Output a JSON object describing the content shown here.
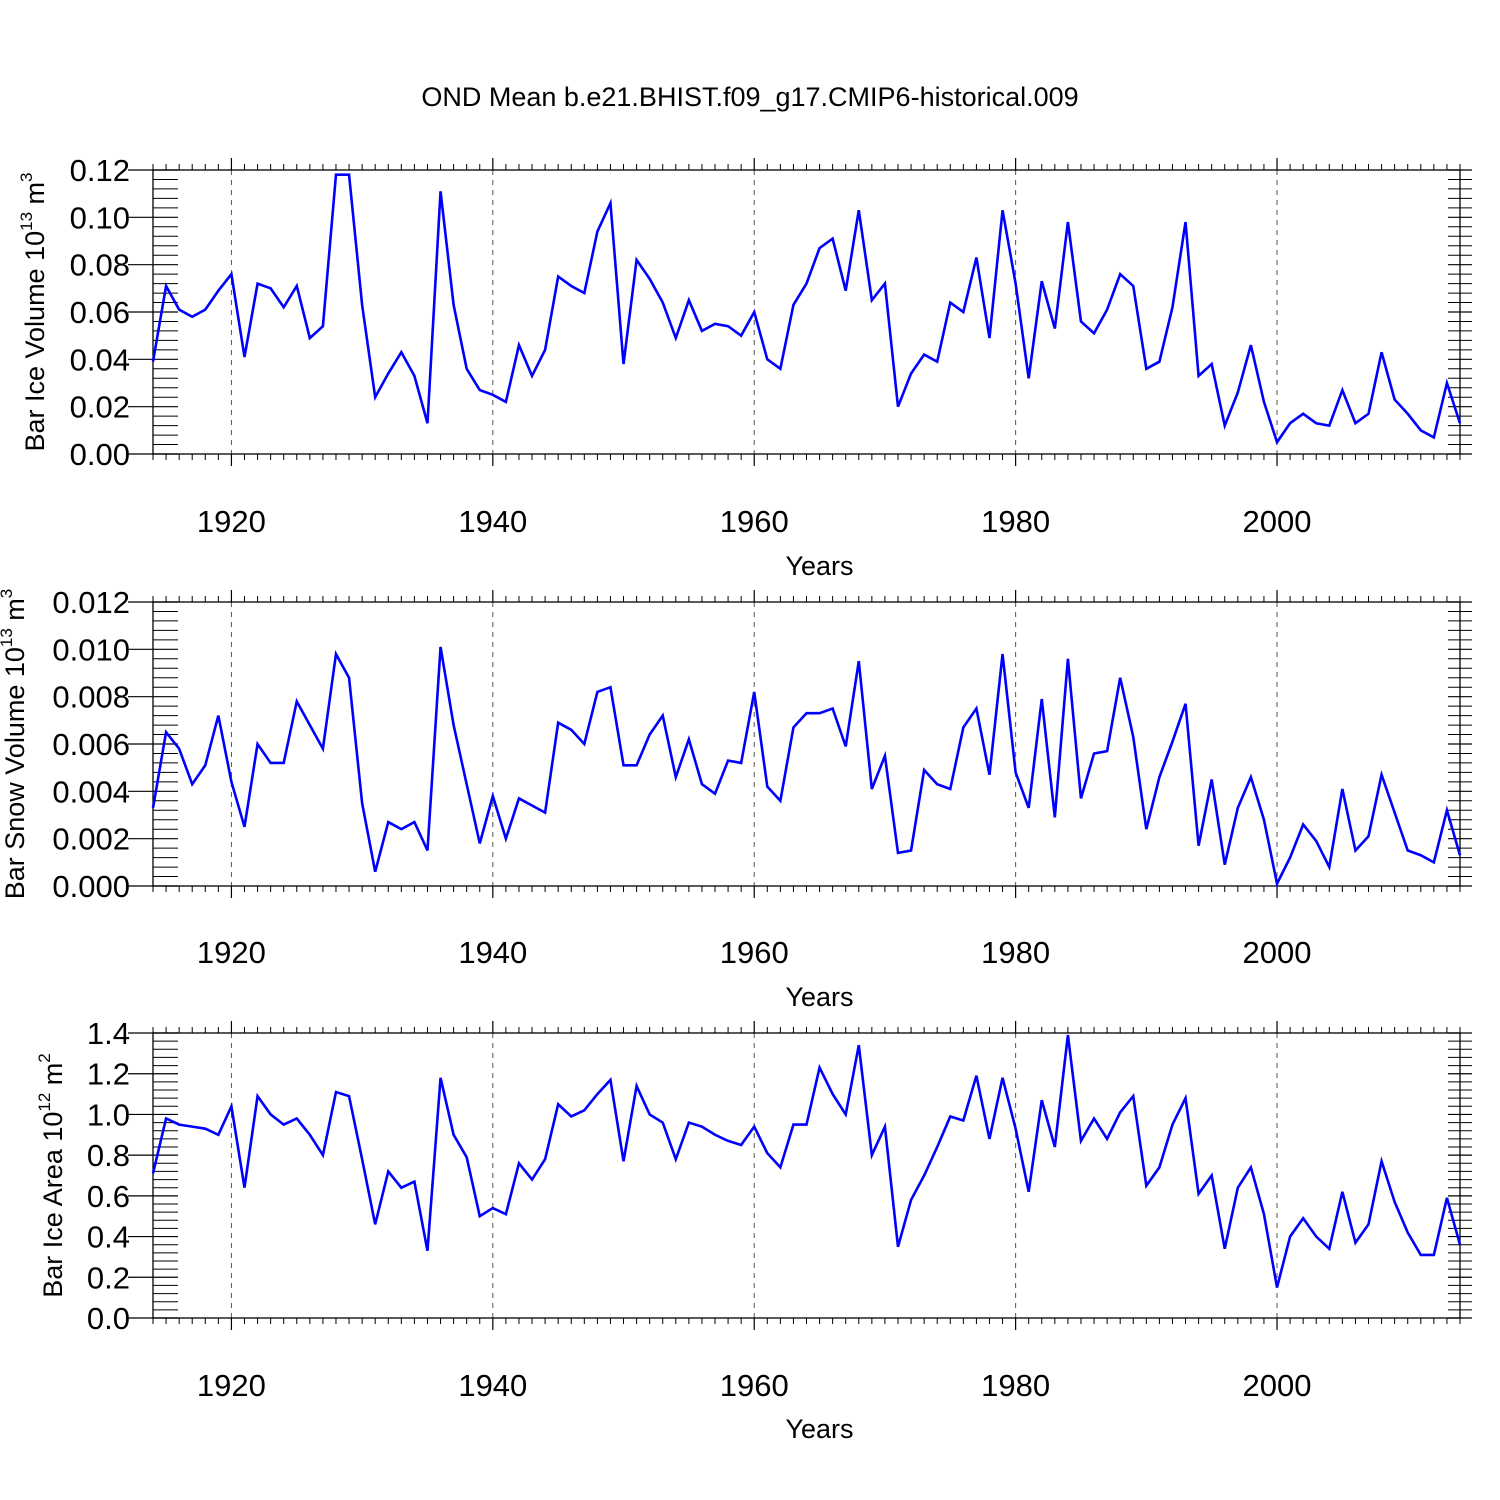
{
  "figure_title": "OND Mean b.e21.BHIST.f09_g17.CMIP6-historical.009",
  "line_color": "#0000ff",
  "chart_data": [
    {
      "type": "line",
      "ylabel": {
        "main": "Bar Ice Volume 10",
        "exp": "13",
        "unit": " m",
        "unit_exp": "3"
      },
      "xlabel": "Years",
      "xlim": [
        1914,
        2014
      ],
      "ylim": [
        0.0,
        0.12
      ],
      "xticks": [
        1920,
        1940,
        1960,
        1980,
        2000
      ],
      "xtick_labels": [
        "1920",
        "1940",
        "1960",
        "1980",
        "2000"
      ],
      "yticks": [
        0.0,
        0.02,
        0.04,
        0.06,
        0.08,
        0.1,
        0.12
      ],
      "ytick_labels": [
        "0.00",
        "0.02",
        "0.04",
        "0.06",
        "0.08",
        "0.10",
        "0.12"
      ],
      "grid": "vertical dashed at major x ticks",
      "series": [
        {
          "name": "Bar Ice Volume",
          "x": [
            1914,
            1915,
            1916,
            1917,
            1918,
            1919,
            1920,
            1921,
            1922,
            1923,
            1924,
            1925,
            1926,
            1927,
            1928,
            1929,
            1930,
            1931,
            1932,
            1933,
            1934,
            1935,
            1936,
            1937,
            1938,
            1939,
            1940,
            1941,
            1942,
            1943,
            1944,
            1945,
            1946,
            1947,
            1948,
            1949,
            1950,
            1951,
            1952,
            1953,
            1954,
            1955,
            1956,
            1957,
            1958,
            1959,
            1960,
            1961,
            1962,
            1963,
            1964,
            1965,
            1966,
            1967,
            1968,
            1969,
            1970,
            1971,
            1972,
            1973,
            1974,
            1975,
            1976,
            1977,
            1978,
            1979,
            1980,
            1981,
            1982,
            1983,
            1984,
            1985,
            1986,
            1987,
            1988,
            1989,
            1990,
            1991,
            1992,
            1993,
            1994,
            1995,
            1996,
            1997,
            1998,
            1999,
            2000,
            2001,
            2002,
            2003,
            2004,
            2005,
            2006,
            2007,
            2008,
            2009,
            2010,
            2011,
            2012,
            2013,
            2014
          ],
          "values": [
            0.039,
            0.071,
            0.061,
            0.058,
            0.061,
            0.069,
            0.076,
            0.041,
            0.072,
            0.07,
            0.062,
            0.071,
            0.049,
            0.054,
            0.118,
            0.118,
            0.063,
            0.024,
            0.034,
            0.043,
            0.033,
            0.013,
            0.111,
            0.063,
            0.036,
            0.027,
            0.025,
            0.022,
            0.046,
            0.033,
            0.044,
            0.075,
            0.071,
            0.068,
            0.094,
            0.106,
            0.038,
            0.082,
            0.074,
            0.064,
            0.049,
            0.065,
            0.052,
            0.055,
            0.054,
            0.05,
            0.06,
            0.04,
            0.036,
            0.063,
            0.072,
            0.087,
            0.091,
            0.069,
            0.103,
            0.065,
            0.072,
            0.02,
            0.034,
            0.042,
            0.039,
            0.064,
            0.06,
            0.083,
            0.049,
            0.103,
            0.072,
            0.032,
            0.073,
            0.053,
            0.098,
            0.056,
            0.051,
            0.061,
            0.076,
            0.071,
            0.036,
            0.039,
            0.062,
            0.098,
            0.033,
            0.038,
            0.012,
            0.026,
            0.046,
            0.022,
            0.005,
            0.013,
            0.017,
            0.013,
            0.012,
            0.027,
            0.013,
            0.017,
            0.043,
            0.023,
            0.017,
            0.01,
            0.007,
            0.03,
            0.013
          ]
        }
      ]
    },
    {
      "type": "line",
      "ylabel": {
        "main": "Bar Snow Volume 10",
        "exp": "13",
        "unit": " m",
        "unit_exp": "3"
      },
      "xlabel": "Years",
      "xlim": [
        1914,
        2014
      ],
      "ylim": [
        0.0,
        0.012
      ],
      "xticks": [
        1920,
        1940,
        1960,
        1980,
        2000
      ],
      "xtick_labels": [
        "1920",
        "1940",
        "1960",
        "1980",
        "2000"
      ],
      "yticks": [
        0.0,
        0.002,
        0.004,
        0.006,
        0.008,
        0.01,
        0.012
      ],
      "ytick_labels": [
        "0.000",
        "0.002",
        "0.004",
        "0.006",
        "0.008",
        "0.010",
        "0.012"
      ],
      "grid": "vertical dashed at major x ticks",
      "series": [
        {
          "name": "Bar Snow Volume",
          "x": [
            1914,
            1915,
            1916,
            1917,
            1918,
            1919,
            1920,
            1921,
            1922,
            1923,
            1924,
            1925,
            1926,
            1927,
            1928,
            1929,
            1930,
            1931,
            1932,
            1933,
            1934,
            1935,
            1936,
            1937,
            1938,
            1939,
            1940,
            1941,
            1942,
            1943,
            1944,
            1945,
            1946,
            1947,
            1948,
            1949,
            1950,
            1951,
            1952,
            1953,
            1954,
            1955,
            1956,
            1957,
            1958,
            1959,
            1960,
            1961,
            1962,
            1963,
            1964,
            1965,
            1966,
            1967,
            1968,
            1969,
            1970,
            1971,
            1972,
            1973,
            1974,
            1975,
            1976,
            1977,
            1978,
            1979,
            1980,
            1981,
            1982,
            1983,
            1984,
            1985,
            1986,
            1987,
            1988,
            1989,
            1990,
            1991,
            1992,
            1993,
            1994,
            1995,
            1996,
            1997,
            1998,
            1999,
            2000,
            2001,
            2002,
            2003,
            2004,
            2005,
            2006,
            2007,
            2008,
            2009,
            2010,
            2011,
            2012,
            2013,
            2014
          ],
          "values": [
            0.0033,
            0.0065,
            0.0058,
            0.0043,
            0.0051,
            0.0072,
            0.0044,
            0.0025,
            0.006,
            0.0052,
            0.0052,
            0.0078,
            0.0068,
            0.0058,
            0.0098,
            0.0088,
            0.0035,
            0.0006,
            0.0027,
            0.0024,
            0.0027,
            0.0015,
            0.0101,
            0.0068,
            0.0043,
            0.0018,
            0.0038,
            0.002,
            0.0037,
            0.0034,
            0.0031,
            0.0069,
            0.0066,
            0.006,
            0.0082,
            0.0084,
            0.0051,
            0.0051,
            0.0064,
            0.0072,
            0.0046,
            0.0062,
            0.0043,
            0.0039,
            0.0053,
            0.0052,
            0.0082,
            0.0042,
            0.0036,
            0.0067,
            0.0073,
            0.0073,
            0.0075,
            0.0059,
            0.0095,
            0.0041,
            0.0055,
            0.0014,
            0.0015,
            0.0049,
            0.0043,
            0.0041,
            0.0067,
            0.0075,
            0.0047,
            0.0098,
            0.0048,
            0.0033,
            0.0079,
            0.0029,
            0.0096,
            0.0037,
            0.0056,
            0.0057,
            0.0088,
            0.0063,
            0.0024,
            0.0046,
            0.0061,
            0.0077,
            0.0017,
            0.0045,
            0.0009,
            0.0033,
            0.0046,
            0.0028,
            0.0001,
            0.0012,
            0.0026,
            0.0019,
            0.0008,
            0.0041,
            0.0015,
            0.0021,
            0.0047,
            0.0031,
            0.0015,
            0.0013,
            0.001,
            0.0032,
            0.0013
          ]
        }
      ]
    },
    {
      "type": "line",
      "ylabel": {
        "main": "Bar Ice Area 10",
        "exp": "12",
        "unit": " m",
        "unit_exp": "2"
      },
      "xlabel": "Years",
      "xlim": [
        1914,
        2014
      ],
      "ylim": [
        0.0,
        1.4
      ],
      "xticks": [
        1920,
        1940,
        1960,
        1980,
        2000
      ],
      "xtick_labels": [
        "1920",
        "1940",
        "1960",
        "1980",
        "2000"
      ],
      "yticks": [
        0.0,
        0.2,
        0.4,
        0.6,
        0.8,
        1.0,
        1.2,
        1.4
      ],
      "ytick_labels": [
        "0.0",
        "0.2",
        "0.4",
        "0.6",
        "0.8",
        "1.0",
        "1.2",
        "1.4"
      ],
      "grid": "vertical dashed at major x ticks",
      "series": [
        {
          "name": "Bar Ice Area",
          "x": [
            1914,
            1915,
            1916,
            1917,
            1918,
            1919,
            1920,
            1921,
            1922,
            1923,
            1924,
            1925,
            1926,
            1927,
            1928,
            1929,
            1930,
            1931,
            1932,
            1933,
            1934,
            1935,
            1936,
            1937,
            1938,
            1939,
            1940,
            1941,
            1942,
            1943,
            1944,
            1945,
            1946,
            1947,
            1948,
            1949,
            1950,
            1951,
            1952,
            1953,
            1954,
            1955,
            1956,
            1957,
            1958,
            1959,
            1960,
            1961,
            1962,
            1963,
            1964,
            1965,
            1966,
            1967,
            1968,
            1969,
            1970,
            1971,
            1972,
            1973,
            1974,
            1975,
            1976,
            1977,
            1978,
            1979,
            1980,
            1981,
            1982,
            1983,
            1984,
            1985,
            1986,
            1987,
            1988,
            1989,
            1990,
            1991,
            1992,
            1993,
            1994,
            1995,
            1996,
            1997,
            1998,
            1999,
            2000,
            2001,
            2002,
            2003,
            2004,
            2005,
            2006,
            2007,
            2008,
            2009,
            2010,
            2011,
            2012,
            2013,
            2014
          ],
          "values": [
            0.71,
            0.98,
            0.95,
            0.94,
            0.93,
            0.9,
            1.04,
            0.64,
            1.09,
            1.0,
            0.95,
            0.98,
            0.9,
            0.8,
            1.11,
            1.09,
            0.78,
            0.46,
            0.72,
            0.64,
            0.67,
            0.33,
            1.18,
            0.9,
            0.79,
            0.5,
            0.54,
            0.51,
            0.76,
            0.68,
            0.78,
            1.05,
            0.99,
            1.02,
            1.1,
            1.17,
            0.77,
            1.14,
            1.0,
            0.96,
            0.78,
            0.96,
            0.94,
            0.9,
            0.87,
            0.85,
            0.94,
            0.81,
            0.74,
            0.95,
            0.95,
            1.23,
            1.1,
            1.0,
            1.34,
            0.8,
            0.94,
            0.35,
            0.58,
            0.7,
            0.84,
            0.99,
            0.97,
            1.19,
            0.88,
            1.18,
            0.93,
            0.62,
            1.07,
            0.84,
            1.39,
            0.87,
            0.98,
            0.88,
            1.01,
            1.09,
            0.65,
            0.74,
            0.95,
            1.08,
            0.61,
            0.7,
            0.34,
            0.64,
            0.74,
            0.51,
            0.15,
            0.4,
            0.49,
            0.4,
            0.34,
            0.62,
            0.37,
            0.46,
            0.77,
            0.57,
            0.42,
            0.31,
            0.31,
            0.59,
            0.36
          ]
        }
      ]
    }
  ]
}
